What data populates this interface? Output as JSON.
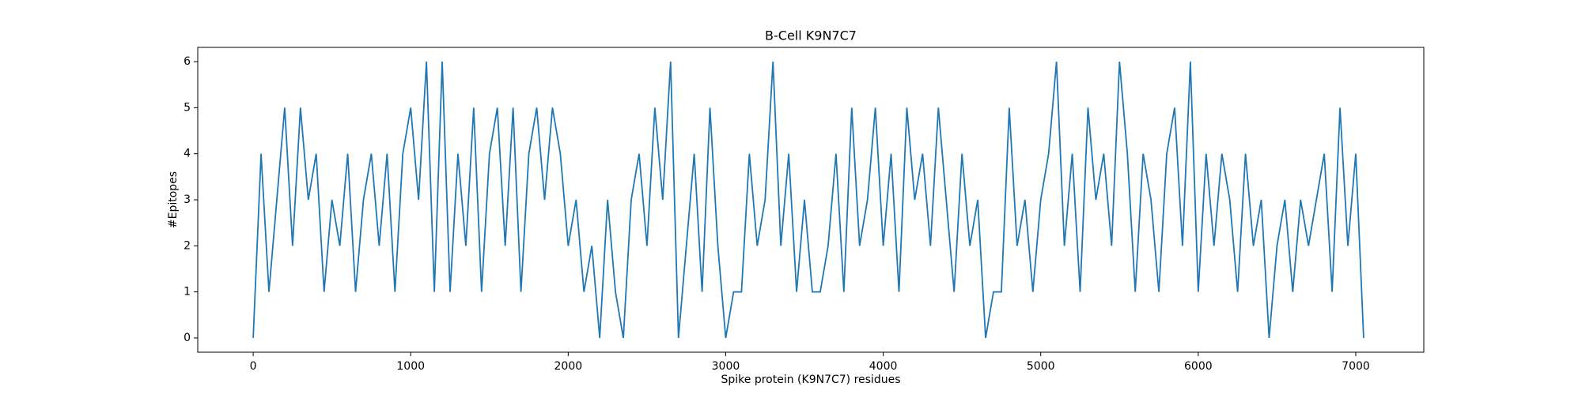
{
  "chart_data": {
    "type": "line",
    "title": "B-Cell K9N7C7",
    "x_label": "Spike protein (K9N7C7) residues",
    "y_label": "#Epitopes",
    "x": [
      0,
      50,
      100,
      150,
      200,
      250,
      300,
      350,
      400,
      450,
      500,
      550,
      600,
      650,
      700,
      750,
      800,
      850,
      900,
      950,
      1000,
      1050,
      1100,
      1150,
      1200,
      1250,
      1300,
      1350,
      1400,
      1450,
      1500,
      1550,
      1600,
      1650,
      1700,
      1750,
      1800,
      1850,
      1900,
      1950,
      2000,
      2050,
      2100,
      2150,
      2200,
      2250,
      2300,
      2350,
      2400,
      2450,
      2500,
      2550,
      2600,
      2650,
      2700,
      2750,
      2800,
      2850,
      2900,
      2950,
      3000,
      3050,
      3100,
      3150,
      3200,
      3250,
      3300,
      3350,
      3400,
      3450,
      3500,
      3550,
      3600,
      3650,
      3700,
      3750,
      3800,
      3850,
      3900,
      3950,
      4000,
      4050,
      4100,
      4150,
      4200,
      4250,
      4300,
      4350,
      4400,
      4450,
      4500,
      4550,
      4600,
      4650,
      4700,
      4750,
      4800,
      4850,
      4900,
      4950,
      5000,
      5050,
      5100,
      5150,
      5200,
      5250,
      5300,
      5350,
      5400,
      5450,
      5500,
      5550,
      5600,
      5650,
      5700,
      5750,
      5800,
      5850,
      5900,
      5950,
      6000,
      6050,
      6100,
      6150,
      6200,
      6250,
      6300,
      6350,
      6400,
      6450,
      6500,
      6550,
      6600,
      6650,
      6700,
      6750,
      6800,
      6850,
      6900,
      6950,
      7000,
      7050
    ],
    "series": [
      {
        "name": "K9N7C7",
        "color": "#1f77b4",
        "values": [
          0,
          4,
          1,
          3,
          5,
          2,
          5,
          3,
          4,
          1,
          3,
          2,
          4,
          1,
          3,
          4,
          2,
          4,
          1,
          4,
          5,
          3,
          6,
          1,
          6,
          1,
          4,
          2,
          5,
          1,
          4,
          5,
          2,
          5,
          1,
          4,
          5,
          3,
          5,
          4,
          2,
          3,
          1,
          2,
          0,
          3,
          1,
          0,
          3,
          4,
          2,
          5,
          3,
          6,
          0,
          2,
          4,
          1,
          5,
          2,
          0,
          1,
          1,
          4,
          2,
          3,
          6,
          2,
          4,
          1,
          3,
          1,
          1,
          2,
          4,
          1,
          5,
          2,
          3,
          5,
          2,
          4,
          1,
          5,
          3,
          4,
          2,
          5,
          3,
          1,
          4,
          2,
          3,
          0,
          1,
          1,
          5,
          2,
          3,
          1,
          3,
          4,
          6,
          2,
          4,
          1,
          5,
          3,
          4,
          2,
          6,
          4,
          1,
          4,
          3,
          1,
          4,
          5,
          2,
          6,
          1,
          4,
          2,
          4,
          3,
          1,
          4,
          2,
          3,
          0,
          2,
          3,
          1,
          3,
          2,
          3,
          4,
          1,
          5,
          2,
          4,
          0
        ]
      }
    ],
    "xlim": [
      -352,
      7432
    ],
    "ylim": [
      -0.31,
      6.31
    ],
    "xticks": [
      0,
      1000,
      2000,
      3000,
      4000,
      5000,
      6000,
      7000
    ],
    "yticks": [
      0,
      1,
      2,
      3,
      4,
      5,
      6
    ]
  }
}
